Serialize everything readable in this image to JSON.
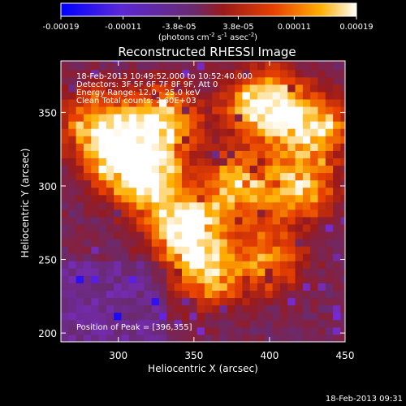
{
  "colorbar": {
    "ticks": [
      "-0.00019",
      "-0.00011",
      "-3.8e-05",
      "3.8e-05",
      "0.00011",
      "0.00019"
    ],
    "tick_values": [
      -0.00019,
      -0.00011,
      -3.8e-05,
      3.8e-05,
      0.00011,
      0.00019
    ],
    "range": [
      -0.00019,
      0.00019
    ],
    "unit_parts": [
      "(photons cm",
      "-2",
      " s",
      "-1",
      " asec",
      "-2",
      ")"
    ],
    "colors": [
      "#0000ff",
      "#7a2bd6",
      "#6a2a6e",
      "#9a1a1a",
      "#e84000",
      "#ffb000",
      "#ffffff"
    ]
  },
  "chart_data": {
    "type": "heatmap",
    "title": "Reconstructed RHESSI Image",
    "xlabel": "Heliocentric X (arcsec)",
    "ylabel": "Heliocentric Y (arcsec)",
    "xlim": [
      262,
      450
    ],
    "ylim": [
      194,
      385
    ],
    "xticks": [
      300,
      350,
      400,
      450
    ],
    "yticks": [
      200,
      250,
      300,
      350
    ],
    "info": [
      "18-Feb-2013 10:49:52.000 to 10:52:40.000",
      "Detectors: 3F 5F 6F 7F 8F 9F, Att 0",
      "Energy Range: 12.0 - 25.0 keV",
      "Clean     Total counts: 2.60E+03"
    ],
    "peak_label": "Position of Peak = [396,355]",
    "peak": [
      396,
      355
    ],
    "bright_regions": [
      {
        "x": 345,
        "y": 270,
        "level": 0.95
      },
      {
        "x": 320,
        "y": 305,
        "level": 0.85
      },
      {
        "x": 330,
        "y": 345,
        "level": 0.8
      },
      {
        "x": 300,
        "y": 320,
        "level": 0.75
      },
      {
        "x": 380,
        "y": 300,
        "level": 0.7
      },
      {
        "x": 396,
        "y": 355,
        "level": 1.0
      },
      {
        "x": 430,
        "y": 340,
        "level": 0.75
      },
      {
        "x": 420,
        "y": 300,
        "level": 0.65
      },
      {
        "x": 360,
        "y": 240,
        "level": 0.6
      },
      {
        "x": 400,
        "y": 250,
        "level": 0.55
      },
      {
        "x": 285,
        "y": 345,
        "level": 0.6
      }
    ]
  },
  "footer": {
    "timestamp": "18-Feb-2013 09:31"
  }
}
